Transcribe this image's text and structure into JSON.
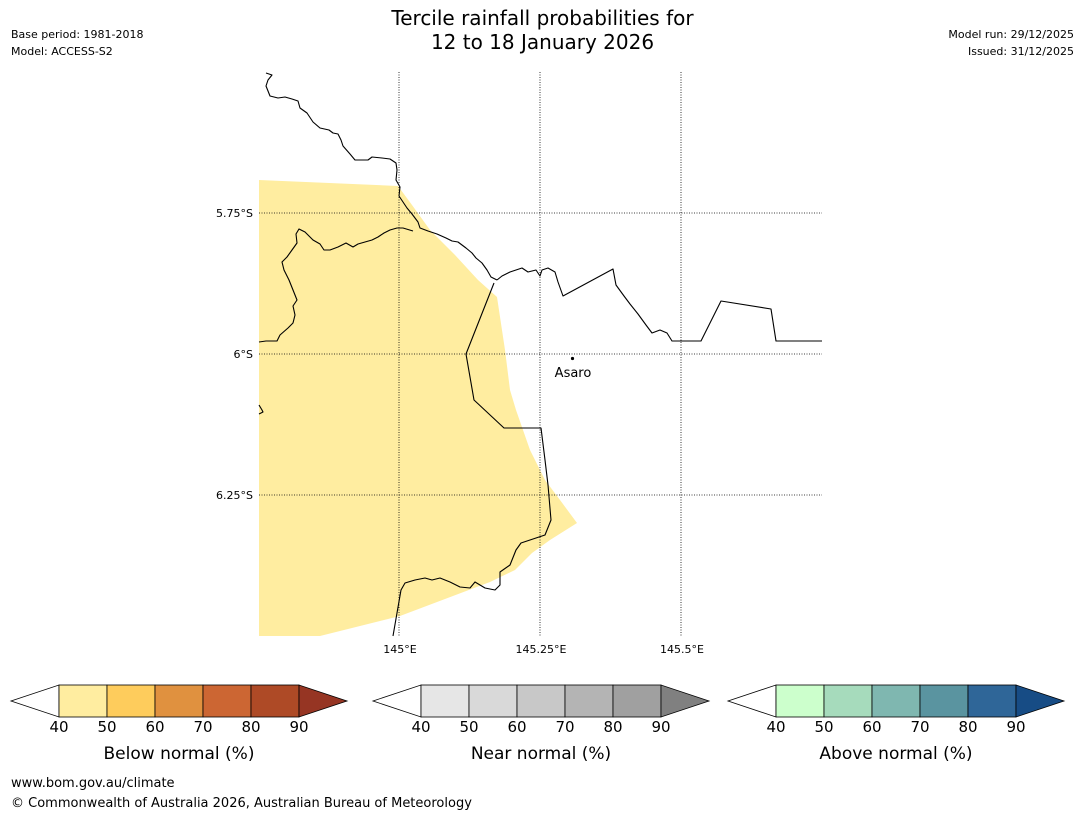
{
  "header": {
    "title_line1": "Tercile rainfall probabilities for",
    "title_line2": "12 to 18 January 2026",
    "base_period": "Base period: 1981-2018",
    "model": "Model: ACCESS-S2",
    "model_run": "Model run: 29/12/2025",
    "issued": "Issued: 31/12/2025"
  },
  "map": {
    "lat_labels": [
      "5.75°S",
      "6°S",
      "6.25°S"
    ],
    "lon_labels": [
      "145°E",
      "145.25°E",
      "145.5°E"
    ],
    "place": "Asaro",
    "colors": {
      "below_40_50": "#ffeda0",
      "border": "#000000",
      "grid": "#000000"
    }
  },
  "legends": [
    {
      "label": "Below normal (%)",
      "ticks": [
        "40",
        "50",
        "60",
        "70",
        "80",
        "90"
      ],
      "colors": [
        "#ffeda0",
        "#fecc5c",
        "#e0913f",
        "#cc6633",
        "#ae4a26",
        "#963523"
      ]
    },
    {
      "label": "Near normal (%)",
      "ticks": [
        "40",
        "50",
        "60",
        "70",
        "80",
        "90"
      ],
      "colors": [
        "#e6e6e6",
        "#d9d9d9",
        "#c8c8c8",
        "#b4b4b4",
        "#a0a0a0",
        "#808080"
      ]
    },
    {
      "label": "Above normal (%)",
      "ticks": [
        "40",
        "50",
        "60",
        "70",
        "80",
        "90"
      ],
      "colors": [
        "#ccffcc",
        "#a6dbbc",
        "#7fb7b0",
        "#5a94a0",
        "#2f6698",
        "#174c85"
      ]
    }
  ],
  "footer": {
    "url": "www.bom.gov.au/climate",
    "copyright": "© Commonwealth of Australia 2026, Australian Bureau of Meteorology"
  }
}
